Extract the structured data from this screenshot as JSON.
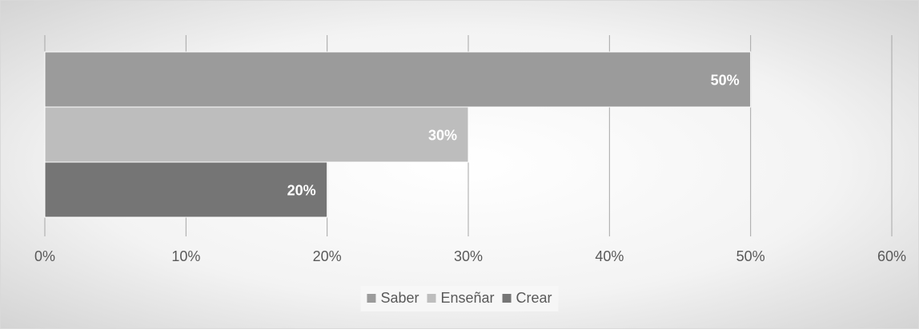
{
  "chart_data": {
    "type": "bar",
    "orientation": "horizontal",
    "x_axis": {
      "min": 0,
      "max": 60,
      "unit": "%",
      "ticks": [
        "0%",
        "10%",
        "20%",
        "30%",
        "40%",
        "50%",
        "60%"
      ]
    },
    "grid": true,
    "legend": {
      "position": "bottom"
    },
    "series": [
      {
        "name": "Saber",
        "value": 50,
        "label": "50%",
        "color": "#9b9b9b"
      },
      {
        "name": "Enseñar",
        "value": 30,
        "label": "30%",
        "color": "#bdbdbd"
      },
      {
        "name": "Crear",
        "value": 20,
        "label": "20%",
        "color": "#757575"
      }
    ],
    "title": "",
    "xlabel": "",
    "ylabel": ""
  },
  "colors": {
    "gridline": "#a6a6a6",
    "bar_border": "#ffffff",
    "data_label": "#ffffff",
    "tick_label": "#595959",
    "legend_text": "#595959"
  }
}
